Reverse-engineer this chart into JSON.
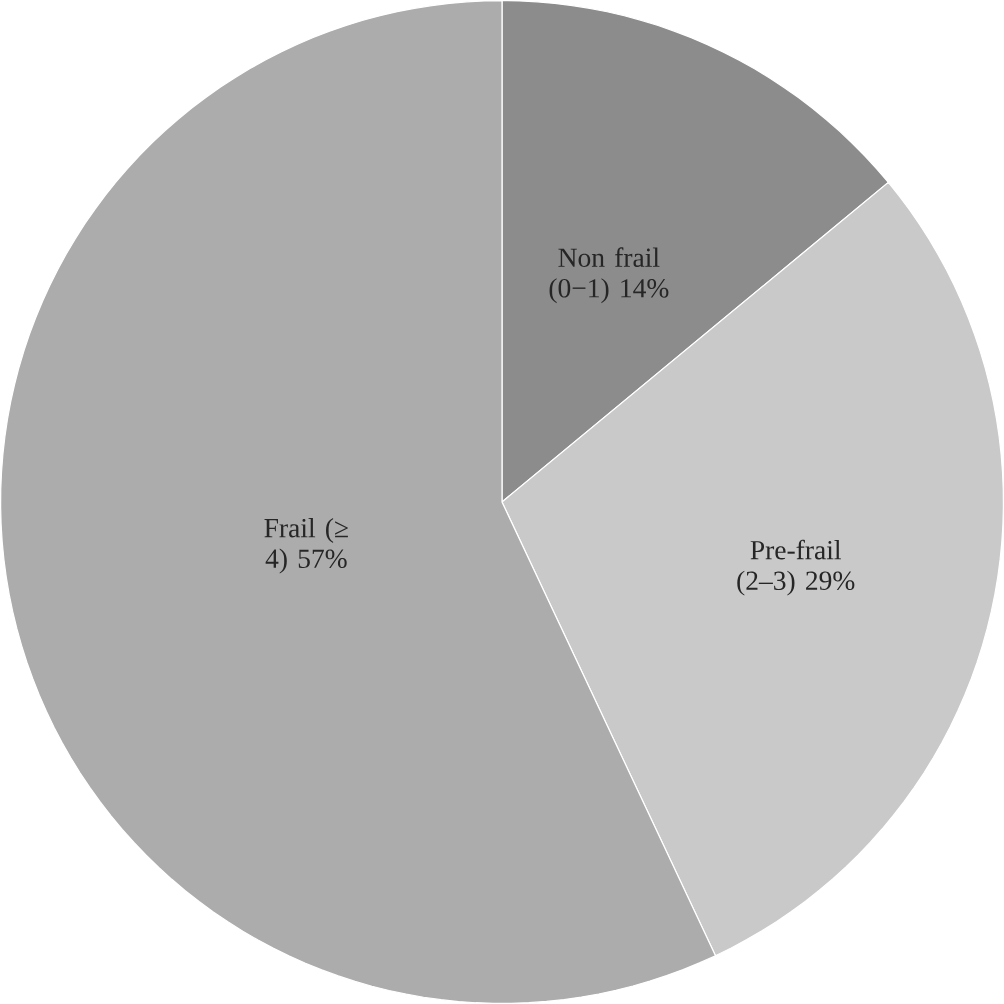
{
  "chart_data": {
    "type": "pie",
    "categories": [
      "Non frail (0−1)",
      "Pre-frail (2–3)",
      "Frail (≥ 4)"
    ],
    "values": [
      14,
      29,
      57
    ],
    "value_labels": [
      "14%",
      "29%",
      "57%"
    ],
    "colors": [
      "#8c8c8c",
      "#c9c9c9",
      "#acacac"
    ]
  }
}
